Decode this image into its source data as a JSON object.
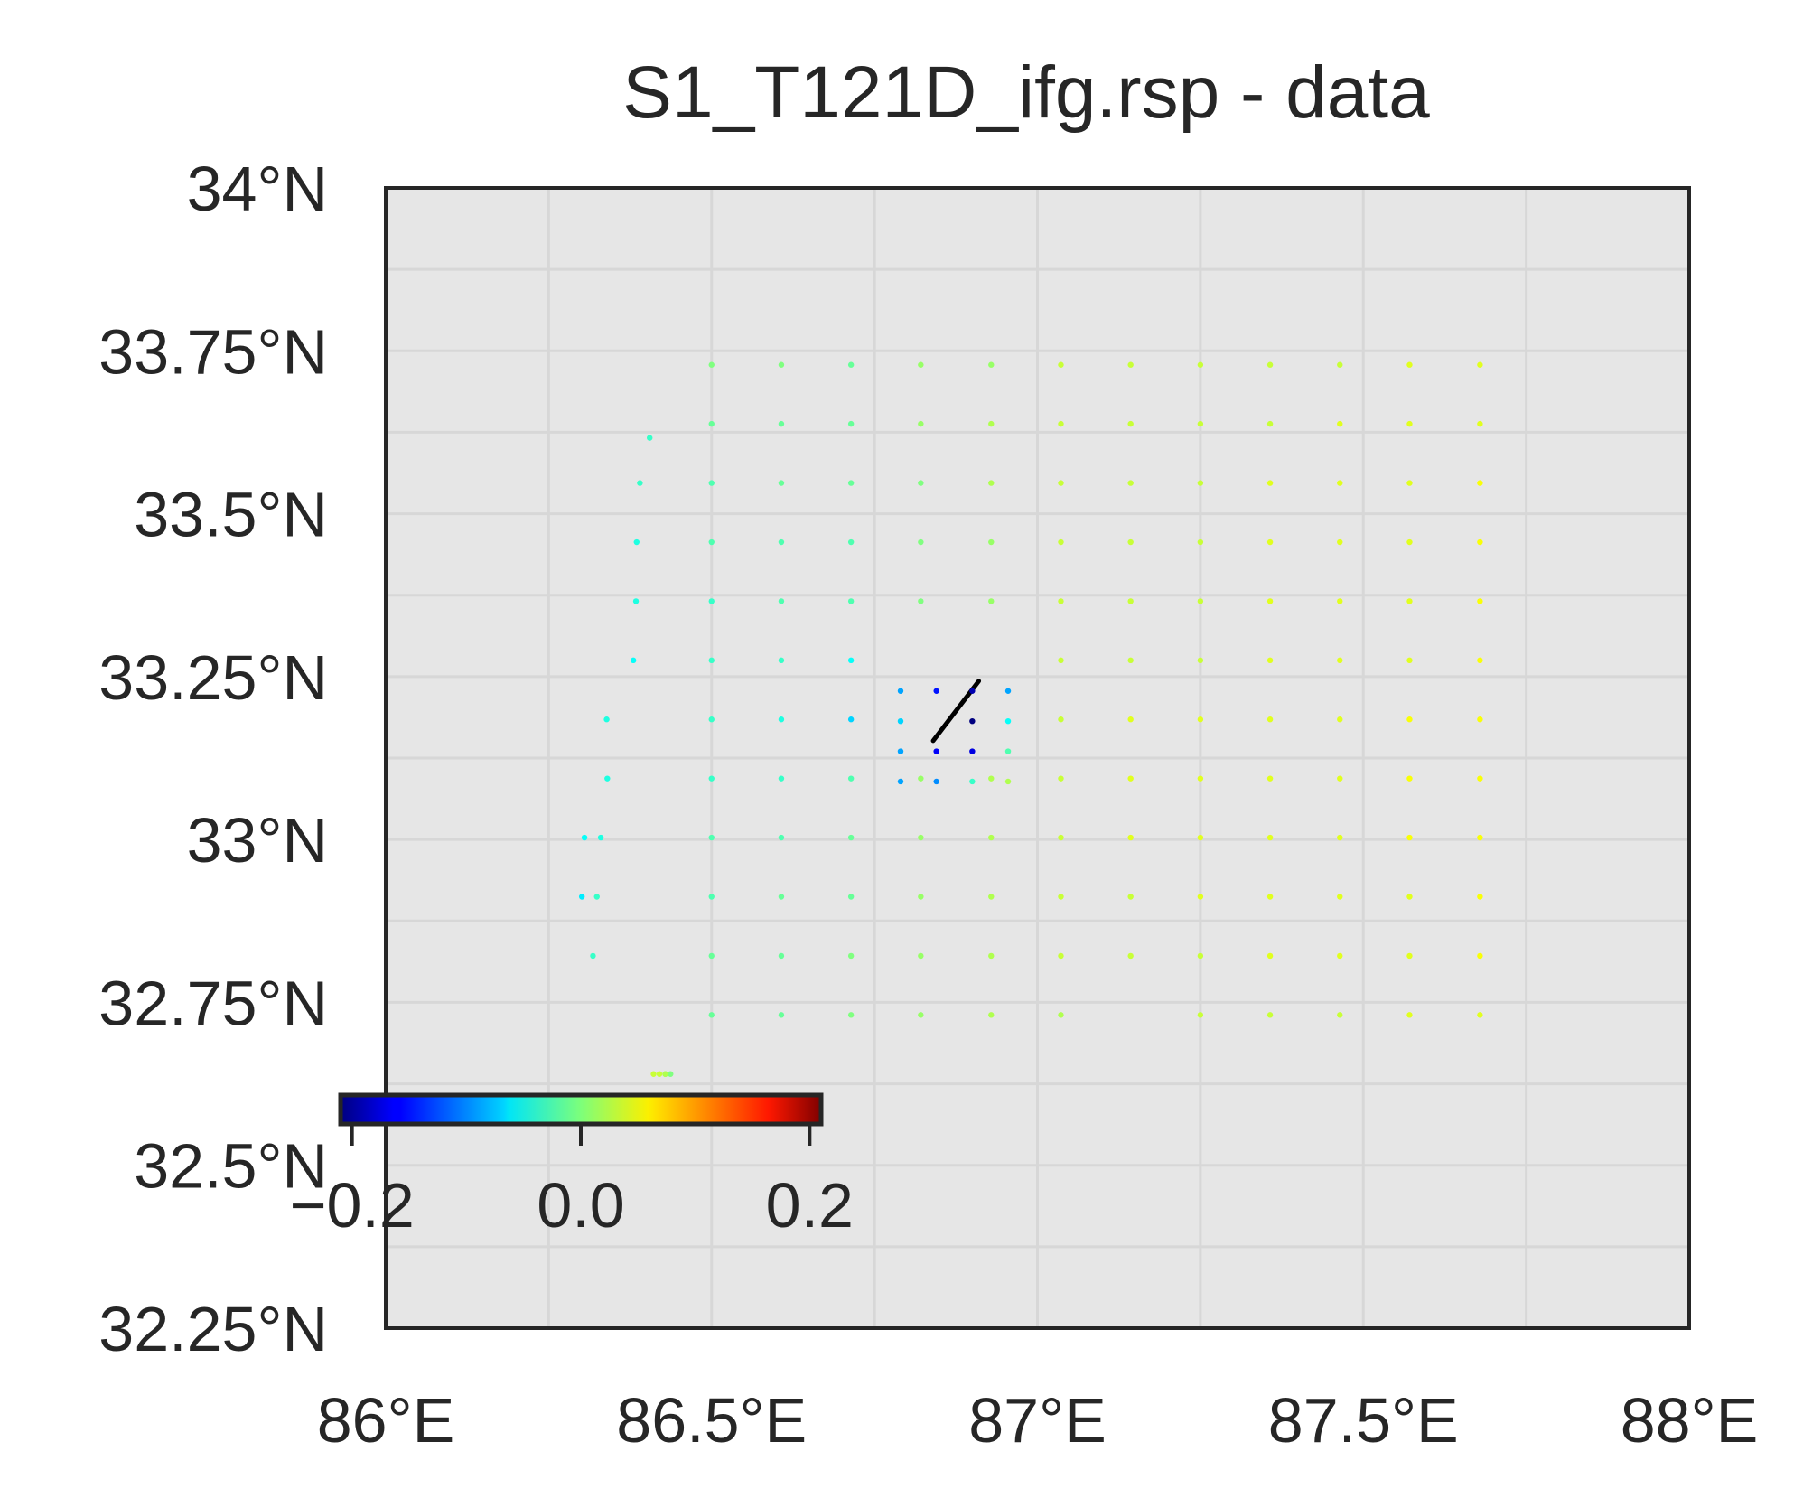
{
  "chart_data": {
    "type": "scatter",
    "title": "S1_T121D_ifg.rsp - data",
    "xlabel": "",
    "ylabel": "",
    "xlim": [
      86.0,
      88.0
    ],
    "ylim": [
      32.25,
      34.0
    ],
    "x_ticks": [
      86.0,
      86.5,
      87.0,
      87.5,
      88.0
    ],
    "x_tick_labels": [
      "86°E",
      "86.5°E",
      "87°E",
      "87.5°E",
      "88°E"
    ],
    "y_ticks": [
      34.0,
      33.75,
      33.5,
      33.25,
      33.0,
      32.75,
      32.5,
      32.25
    ],
    "y_tick_labels": [
      "34°N",
      "33.75°N",
      "33.5°N",
      "33.25°N",
      "33°N",
      "32.75°N",
      "32.5°N",
      "32.25°N"
    ],
    "grid": true,
    "colormap": "jet",
    "colorbar": {
      "vmin": -0.21,
      "vmax": 0.21,
      "ticks": [
        -0.2,
        0.0,
        0.2
      ],
      "tick_labels": [
        "−0.2",
        "0.0",
        "0.2"
      ],
      "placement": "lower-left"
    },
    "colors": {
      "axes_background": "#e6e6e6",
      "grid": "#d7d7d7",
      "frame": "#262626",
      "fault_trace": "#000000"
    },
    "fault_trace": {
      "lon": [
        86.84,
        86.91
      ],
      "lat": [
        33.1515,
        33.2432
      ]
    },
    "series": [
      {
        "lon": [
          86.5,
          86.607,
          86.714,
          86.821,
          86.929,
          87.036,
          87.143,
          87.25,
          87.357,
          87.464,
          87.571,
          87.679,
          86.5,
          86.607,
          86.714,
          86.821,
          86.929,
          87.036,
          87.143,
          87.25,
          87.357,
          87.464,
          87.571,
          87.679,
          86.5,
          86.607,
          86.714,
          86.821,
          86.929,
          87.036,
          87.143,
          87.25,
          87.357,
          87.464,
          87.571,
          87.679,
          86.5,
          86.607,
          86.714,
          86.821,
          86.929,
          87.036,
          87.143,
          87.25,
          87.357,
          87.464,
          87.571,
          87.679,
          86.5,
          86.607,
          86.714,
          86.821,
          86.929,
          87.036,
          87.143,
          87.25,
          87.357,
          87.464,
          87.571,
          87.679,
          86.5,
          86.607,
          86.714,
          87.036,
          87.143,
          87.25,
          87.357,
          87.464,
          87.571,
          87.679,
          86.5,
          86.607,
          86.714,
          87.036,
          87.143,
          87.25,
          87.357,
          87.464,
          87.571,
          87.679,
          86.5,
          86.607,
          86.714,
          86.821,
          86.929,
          87.036,
          87.143,
          87.25,
          87.357,
          87.464,
          87.571,
          87.679,
          86.5,
          86.607,
          86.714,
          86.821,
          86.929,
          87.036,
          87.143,
          87.25,
          87.357,
          87.464,
          87.571,
          87.679,
          86.5,
          86.607,
          86.714,
          86.821,
          86.929,
          87.036,
          87.143,
          87.25,
          87.357,
          87.464,
          87.571,
          87.679,
          86.5,
          86.607,
          86.714,
          86.821,
          86.929,
          87.036,
          87.143,
          87.25,
          87.357,
          87.464,
          87.571,
          87.679,
          86.5,
          86.607,
          86.714,
          86.821,
          86.929,
          87.036,
          87.25,
          87.357,
          87.464,
          87.571,
          87.679,
          86.437,
          86.429,
          86.429,
          86.42,
          86.411,
          86.405,
          86.39,
          86.385,
          86.384,
          86.38,
          86.339,
          86.34,
          86.33,
          86.324,
          86.318,
          86.305,
          86.301
        ],
        "lat": [
          33.7286,
          33.7286,
          33.7286,
          33.7286,
          33.7286,
          33.7286,
          33.7286,
          33.7286,
          33.7286,
          33.7286,
          33.7286,
          33.7286,
          33.6379,
          33.6379,
          33.6379,
          33.6379,
          33.6379,
          33.6379,
          33.6379,
          33.6379,
          33.6379,
          33.6379,
          33.6379,
          33.6379,
          33.5471,
          33.5471,
          33.5471,
          33.5471,
          33.5471,
          33.5471,
          33.5471,
          33.5471,
          33.5471,
          33.5471,
          33.5471,
          33.5471,
          33.4564,
          33.4564,
          33.4564,
          33.4564,
          33.4564,
          33.4564,
          33.4564,
          33.4564,
          33.4564,
          33.4564,
          33.4564,
          33.4564,
          33.3657,
          33.3657,
          33.3657,
          33.3657,
          33.3657,
          33.3657,
          33.3657,
          33.3657,
          33.3657,
          33.3657,
          33.3657,
          33.3657,
          33.275,
          33.275,
          33.275,
          33.275,
          33.275,
          33.275,
          33.275,
          33.275,
          33.275,
          33.275,
          33.1843,
          33.1843,
          33.1843,
          33.1843,
          33.1843,
          33.1843,
          33.1843,
          33.1843,
          33.1843,
          33.1843,
          33.0936,
          33.0936,
          33.0936,
          33.0936,
          33.0936,
          33.0936,
          33.0936,
          33.0936,
          33.0936,
          33.0936,
          33.0936,
          33.0936,
          33.0029,
          33.0029,
          33.0029,
          33.0029,
          33.0029,
          33.0029,
          33.0029,
          33.0029,
          33.0029,
          33.0029,
          33.0029,
          33.0029,
          32.9121,
          32.9121,
          32.9121,
          32.9121,
          32.9121,
          32.9121,
          32.9121,
          32.9121,
          32.9121,
          32.9121,
          32.9121,
          32.9121,
          32.8214,
          32.8214,
          32.8214,
          32.8214,
          32.8214,
          32.8214,
          32.8214,
          32.8214,
          32.8214,
          32.8214,
          32.8214,
          32.8214,
          32.7307,
          32.7307,
          32.7307,
          32.7307,
          32.7307,
          32.7307,
          32.7307,
          32.7307,
          32.7307,
          32.7307,
          32.7307,
          32.64,
          32.64,
          32.64,
          32.64,
          32.64,
          33.6164,
          33.5471,
          33.4564,
          33.3657,
          33.275,
          33.1843,
          33.0936,
          33.0029,
          32.9121,
          32.8214,
          33.0029,
          32.9121,
          32.8214,
          32.7307,
          32.64,
          32.5729,
          32.5436
        ],
        "values": [
          0.0,
          0.0,
          -0.01,
          0.01,
          0.01,
          0.03,
          0.03,
          0.03,
          0.03,
          0.03,
          0.04,
          0.04,
          -0.01,
          -0.01,
          -0.01,
          0.01,
          0.02,
          0.03,
          0.03,
          0.03,
          0.03,
          0.04,
          0.04,
          0.04,
          -0.02,
          -0.01,
          -0.01,
          0.0,
          0.02,
          0.03,
          0.03,
          0.03,
          0.04,
          0.04,
          0.04,
          0.05,
          -0.02,
          -0.02,
          -0.02,
          0.0,
          0.01,
          0.03,
          0.03,
          0.03,
          0.04,
          0.04,
          0.04,
          0.05,
          -0.03,
          -0.02,
          -0.02,
          0.0,
          0.01,
          0.03,
          0.03,
          0.03,
          0.04,
          0.04,
          0.04,
          0.05,
          -0.03,
          -0.03,
          -0.05,
          0.03,
          0.03,
          0.03,
          0.04,
          0.04,
          0.04,
          0.05,
          -0.03,
          -0.04,
          -0.07,
          0.03,
          0.04,
          0.04,
          0.04,
          0.04,
          0.05,
          0.05,
          -0.03,
          -0.03,
          -0.02,
          0.01,
          0.02,
          0.03,
          0.04,
          0.04,
          0.04,
          0.04,
          0.05,
          0.05,
          -0.02,
          -0.02,
          -0.01,
          0.01,
          0.02,
          0.03,
          0.04,
          0.04,
          0.04,
          0.04,
          0.05,
          0.05,
          -0.02,
          -0.01,
          -0.01,
          0.01,
          0.02,
          0.03,
          0.03,
          0.04,
          0.04,
          0.04,
          0.04,
          0.05,
          -0.01,
          -0.01,
          0.0,
          0.01,
          0.02,
          0.03,
          0.03,
          0.03,
          0.04,
          0.04,
          0.04,
          0.05,
          -0.01,
          -0.01,
          0.0,
          0.01,
          0.02,
          0.02,
          0.03,
          0.03,
          0.03,
          0.04,
          0.04,
          0.0,
          0.0,
          0.02,
          0.03,
          0.03,
          -0.03,
          -0.03,
          -0.04,
          -0.04,
          -0.05,
          -0.04,
          -0.04,
          -0.04,
          -0.03,
          -0.03,
          -0.05,
          -0.06,
          -0.05,
          -0.05,
          -0.05,
          -0.05,
          -0.05
        ]
      },
      {
        "lon": [
          86.79,
          86.845,
          86.9,
          86.955,
          86.79,
          86.9,
          86.955,
          86.79,
          86.845,
          86.9,
          86.955,
          86.79,
          86.845,
          86.9,
          86.955
        ],
        "lat": [
          33.2279,
          33.2279,
          33.2279,
          33.2279,
          33.1816,
          33.1816,
          33.1816,
          33.1353,
          33.1353,
          33.1353,
          33.1353,
          33.089,
          33.089,
          33.089,
          33.089
        ],
        "values": [
          -0.09,
          -0.15,
          -0.19,
          -0.09,
          -0.07,
          -0.21,
          -0.05,
          -0.09,
          -0.16,
          -0.17,
          -0.02,
          -0.09,
          -0.1,
          -0.03,
          0.02
        ]
      }
    ]
  }
}
